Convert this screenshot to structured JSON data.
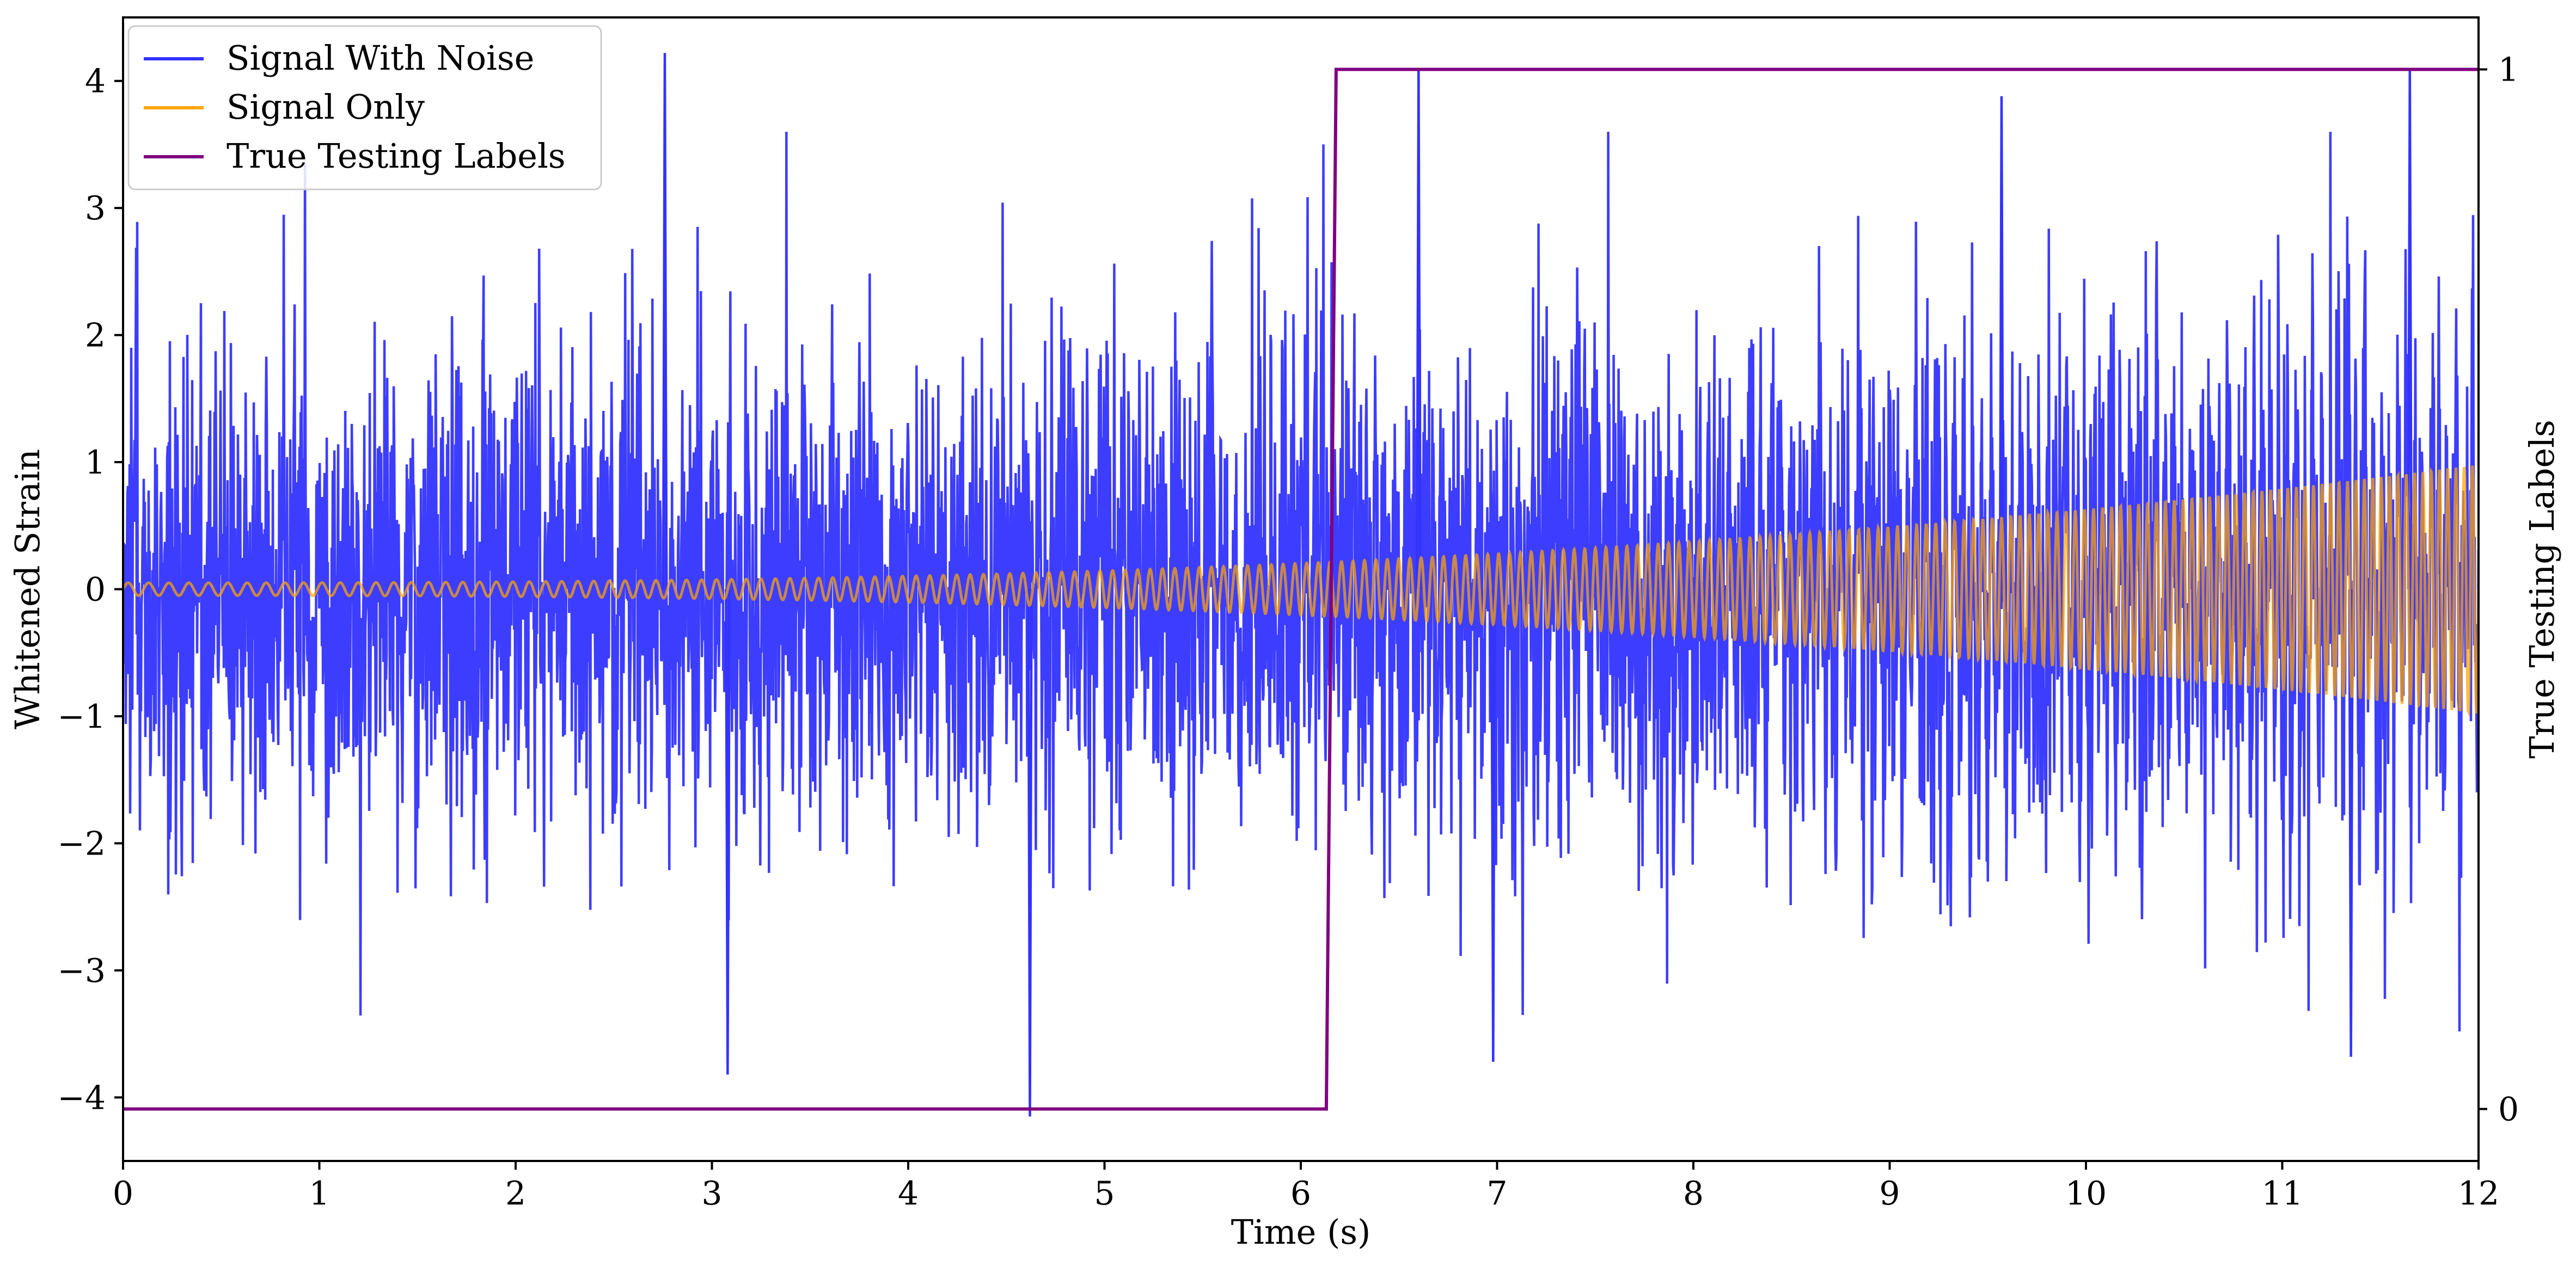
{
  "chart_data": {
    "type": "line",
    "title": "",
    "xlabel": "Time (s)",
    "ylabel": "Whitened Strain",
    "y2label": "True Testing Labels",
    "xlim": [
      0,
      12
    ],
    "ylim": [
      -4.5,
      4.5
    ],
    "y2lim": [
      -0.05,
      1.05
    ],
    "xticks": [
      "0",
      "1",
      "2",
      "3",
      "4",
      "5",
      "6",
      "7",
      "8",
      "9",
      "10",
      "11",
      "12"
    ],
    "yticks": [
      "4",
      "3",
      "2",
      "1",
      "0",
      "−1",
      "−2",
      "−3",
      "−4"
    ],
    "y2ticks": [
      "1",
      "0"
    ],
    "grid": false,
    "legend_position": "upper-left",
    "series": [
      {
        "name": "Signal With Noise",
        "color": "#3333ff",
        "axis": "left",
        "noise_std": 0.98,
        "peaks": [
          {
            "x": 2.76,
            "y": 4.22
          },
          {
            "x": 11.65,
            "y": 4.08
          },
          {
            "x": 6.6,
            "y": 4.1
          },
          {
            "x": 9.57,
            "y": 3.88
          },
          {
            "x": 4.62,
            "y": -4.15
          },
          {
            "x": 3.08,
            "y": -3.82
          },
          {
            "x": 6.98,
            "y": -3.72
          },
          {
            "x": 11.35,
            "y": -3.68
          }
        ]
      },
      {
        "name": "Signal Only",
        "color": "#ffa500",
        "axis": "left",
        "amplitude_start": 0.05,
        "amplitude_end": 0.98,
        "cycles_per_second_start": 9.5,
        "cycles_per_second_end": 24
      },
      {
        "name": "True Testing Labels",
        "color": "#800080",
        "axis": "right",
        "x": [
          0,
          6.13,
          6.18,
          12
        ],
        "y": [
          0,
          0,
          1,
          1
        ]
      }
    ]
  }
}
